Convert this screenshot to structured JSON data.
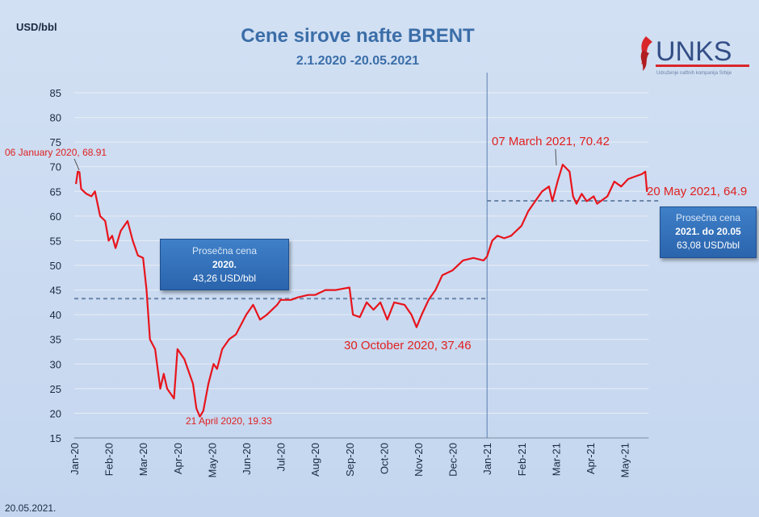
{
  "logo": {
    "name": "UNKS",
    "subtitle": "Udruženje naftnih kompanija Srbije"
  },
  "footer_date": "20.05.2021.",
  "chart_data": {
    "type": "line",
    "title": "Cene sirove nafte BRENT",
    "subtitle": "2.1.2020 -20.05.2021",
    "ylabel": "USD/bbl",
    "xlabel": "",
    "ylim": [
      15,
      85
    ],
    "yticks": [
      15,
      20,
      25,
      30,
      35,
      40,
      45,
      50,
      55,
      60,
      65,
      70,
      75,
      80,
      85
    ],
    "xticks": [
      "Jan-20",
      "Feb-20",
      "Mar-20",
      "Apr-20",
      "May-20",
      "Jun-20",
      "Jul-20",
      "Aug-20",
      "Sep-20",
      "Oct-20",
      "Nov-20",
      "Dec-20",
      "Jan-21",
      "Feb-21",
      "Mar-21",
      "Apr-21",
      "May-21"
    ],
    "x_unit": "months since Jan 2020",
    "grid": true,
    "series": [
      {
        "name": "Brent",
        "color": "#e8141c",
        "x": [
          0.05,
          0.1,
          0.15,
          0.2,
          0.35,
          0.5,
          0.6,
          0.75,
          0.9,
          1.0,
          1.1,
          1.2,
          1.35,
          1.55,
          1.7,
          1.85,
          2.0,
          2.1,
          2.2,
          2.35,
          2.5,
          2.6,
          2.7,
          2.9,
          3.0,
          3.2,
          3.35,
          3.45,
          3.55,
          3.65,
          3.75,
          3.9,
          4.05,
          4.15,
          4.3,
          4.5,
          4.7,
          5.0,
          5.2,
          5.4,
          5.6,
          5.9,
          6.0,
          6.3,
          6.5,
          6.8,
          7.0,
          7.3,
          7.6,
          8.0,
          8.1,
          8.3,
          8.5,
          8.7,
          8.9,
          9.1,
          9.3,
          9.6,
          9.8,
          9.95,
          10.1,
          10.3,
          10.5,
          10.7,
          11.0,
          11.3,
          11.6,
          11.9,
          12.0,
          12.15,
          12.3,
          12.5,
          12.7,
          13.0,
          13.2,
          13.4,
          13.6,
          13.8,
          13.9,
          14.05,
          14.2,
          14.4,
          14.5,
          14.6,
          14.75,
          14.9,
          15.1,
          15.2,
          15.5,
          15.7,
          15.9,
          16.1,
          16.3,
          16.5,
          16.6,
          16.65
        ],
        "values": [
          66.5,
          69,
          68.91,
          65.5,
          64.5,
          64,
          65,
          60,
          59,
          55,
          56,
          53.5,
          57,
          59,
          55,
          52,
          51.5,
          45,
          35,
          33,
          25,
          28,
          25,
          23,
          33,
          31,
          28,
          26,
          21,
          19.33,
          20.5,
          26,
          30,
          29,
          33,
          35,
          36,
          40,
          42,
          39,
          40,
          42,
          43,
          43,
          43.5,
          44,
          44,
          45,
          45,
          45.5,
          40,
          39.5,
          42.5,
          41,
          42.5,
          39,
          42.5,
          42,
          40,
          37.46,
          40,
          43,
          45,
          48,
          49,
          51,
          51.5,
          51,
          51.8,
          55,
          56,
          55.5,
          56,
          58,
          61,
          63,
          65,
          66,
          63,
          67,
          70.42,
          69,
          64,
          62.5,
          64.5,
          63,
          64,
          62.5,
          64,
          67,
          66,
          67.5,
          68,
          68.5,
          69,
          64.9
        ]
      }
    ],
    "averages": [
      {
        "label": "Prosečna cena",
        "period": "2020.",
        "value": 43.26,
        "value_text": "43,26 USD/bbl",
        "from": 0,
        "to": 12
      },
      {
        "label": "Prosečna cena",
        "period": "2021. do 20.05",
        "value": 63.08,
        "value_text": "63,08 USD/bbl",
        "from": 12,
        "to": 17
      }
    ],
    "annotations": [
      {
        "text": "06 January 2020, 68.91"
      },
      {
        "text": "21 April 2020, 19.33"
      },
      {
        "text": "30 October 2020, 37.46"
      },
      {
        "text": "07 March 2021, 70.42"
      },
      {
        "text": "20 May 2021, 64.9"
      }
    ]
  }
}
